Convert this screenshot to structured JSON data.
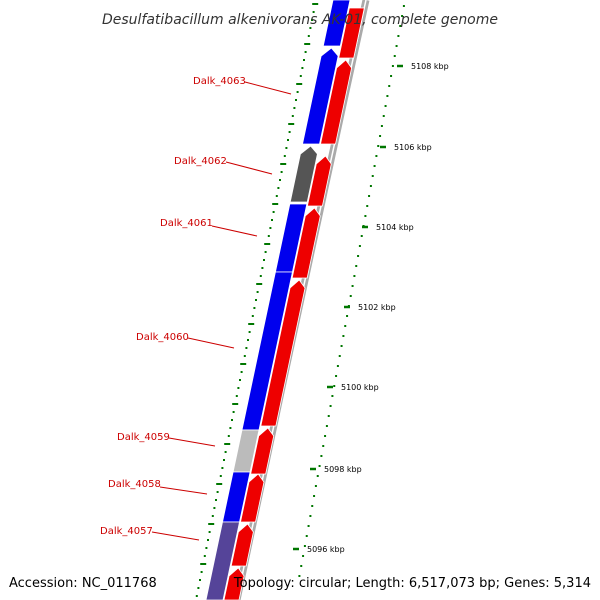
{
  "title": "Desulfatibacillum alkenivorans AK-01, complete genome",
  "footer": {
    "accession": "Accession: NC_011768",
    "summary": "Topology: circular; Length: 6,517,073 bp; Genes: 5,314"
  },
  "colors": {
    "forward_gene": "#ee0000",
    "reverse_gene": "#0000ee",
    "gray_gene_dark": "#555555",
    "gray_gene_light": "#bbbbbb",
    "pale_gene": "#554499",
    "backbone": "#999999",
    "tick": "#007700",
    "label": "#cc0000"
  },
  "gene_labels": [
    "Dalk_4063",
    "Dalk_4062",
    "Dalk_4061",
    "Dalk_4060",
    "Dalk_4059",
    "Dalk_4058",
    "Dalk_4057"
  ],
  "kbp_labels": [
    "5108 kbp",
    "5106 kbp",
    "5104 kbp",
    "5102 kbp",
    "5100 kbp",
    "5098 kbp",
    "5096 kbp"
  ]
}
